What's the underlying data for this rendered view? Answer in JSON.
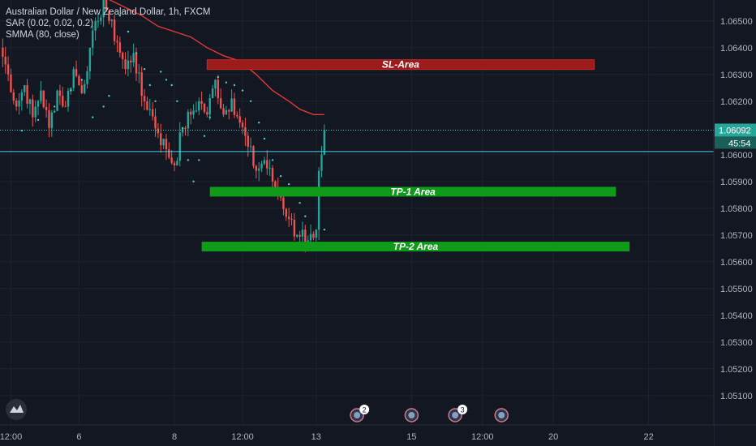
{
  "header": {
    "symbol_title": "Australian Dollar / New Zealand Dollar, 1h, FXCM",
    "indicator_sar": "SAR (0.02, 0.02, 0.2)",
    "indicator_smma": "SMMA (80, close)"
  },
  "colors": {
    "background": "#131722",
    "bull": "#26a69a",
    "bear": "#ef5350",
    "sar": "#4dd0c8",
    "smma": "#e53935",
    "price_line": "#4dd0e1",
    "sl_zone": "#9c1b1b",
    "tp_zone": "#0f9a1a",
    "axis_text": "#b2b5be",
    "grid": "#1e222d"
  },
  "zones": [
    {
      "name": "sl-zone",
      "label": "SL-Area",
      "top": 1.06355,
      "bottom": 1.0633,
      "start_index": 76,
      "end_index": 218,
      "color": "#9c1b1b"
    },
    {
      "name": "tp1-zone",
      "label": "TP-1 Area",
      "top": 1.0588,
      "bottom": 1.05855,
      "start_index": 77,
      "end_index": 226,
      "color": "#0f9a1a"
    },
    {
      "name": "tp2-zone",
      "label": "TP-2 Area",
      "top": 1.05675,
      "bottom": 1.0565,
      "start_index": 74,
      "end_index": 231,
      "color": "#0f9a1a"
    }
  ],
  "price_labels": {
    "current_price": "1.06092",
    "countdown": "45:54",
    "current_value": 1.06092,
    "horizontal_line": 1.06012
  },
  "events": [
    {
      "name": "event-1",
      "index": 131,
      "count": "2"
    },
    {
      "name": "event-2",
      "index": 151,
      "count": ""
    },
    {
      "name": "event-3",
      "index": 167,
      "count": "3"
    },
    {
      "name": "event-4",
      "index": 184,
      "count": ""
    }
  ],
  "logo": "tradingview-logo",
  "chart_data": {
    "type": "candlestick",
    "title": "Australian Dollar / New Zealand Dollar, 1h, FXCM",
    "ylim": [
      1.0505,
      1.0656
    ],
    "y_ticks": [
      "1.06500",
      "1.06400",
      "1.06300",
      "1.06200",
      "1.06000",
      "1.05900",
      "1.05800",
      "1.05700",
      "1.05600",
      "1.05500",
      "1.05400",
      "1.05300",
      "1.05200",
      "1.05100"
    ],
    "x_ticks": [
      {
        "label": "12:00",
        "index": 4
      },
      {
        "label": "6",
        "index": 29
      },
      {
        "label": "8",
        "index": 64
      },
      {
        "label": "12:00",
        "index": 89
      },
      {
        "label": "13",
        "index": 116
      },
      {
        "label": "15",
        "index": 151
      },
      {
        "label": "12:00",
        "index": 177
      },
      {
        "label": "20",
        "index": 203
      },
      {
        "label": "22",
        "index": 238
      }
    ],
    "last_x_label": "",
    "ohlc_anchors": [
      [
        0,
        1.064
      ],
      [
        3,
        1.063
      ],
      [
        6,
        1.0618
      ],
      [
        9,
        1.0626
      ],
      [
        12,
        1.0614
      ],
      [
        15,
        1.0624
      ],
      [
        18,
        1.061
      ],
      [
        21,
        1.0624
      ],
      [
        24,
        1.0618
      ],
      [
        27,
        1.0632
      ],
      [
        30,
        1.0623
      ],
      [
        33,
        1.064
      ],
      [
        36,
        1.065
      ],
      [
        38,
        1.0658
      ],
      [
        40,
        1.065
      ],
      [
        43,
        1.0642
      ],
      [
        46,
        1.0632
      ],
      [
        49,
        1.0638
      ],
      [
        52,
        1.0622
      ],
      [
        55,
        1.0617
      ],
      [
        58,
        1.0608
      ],
      [
        61,
        1.0602
      ],
      [
        64,
        1.0596
      ],
      [
        67,
        1.061
      ],
      [
        70,
        1.0615
      ],
      [
        73,
        1.062
      ],
      [
        76,
        1.0615
      ],
      [
        79,
        1.0628
      ],
      [
        82,
        1.0615
      ],
      [
        85,
        1.0621
      ],
      [
        88,
        1.0612
      ],
      [
        91,
        1.0603
      ],
      [
        94,
        1.0594
      ],
      [
        97,
        1.0598
      ],
      [
        100,
        1.059
      ],
      [
        103,
        1.0584
      ],
      [
        106,
        1.0576
      ],
      [
        109,
        1.057
      ],
      [
        111,
        1.0572
      ],
      [
        112,
        1.0567
      ],
      [
        113,
        1.0568
      ],
      [
        115,
        1.0569
      ],
      [
        116,
        1.0572
      ],
      [
        117,
        1.0594
      ],
      [
        118,
        1.06
      ],
      [
        119,
        1.06092
      ]
    ],
    "smma": [
      [
        40,
        1.0658
      ],
      [
        46,
        1.0655
      ],
      [
        52,
        1.0652
      ],
      [
        58,
        1.0648
      ],
      [
        64,
        1.0646
      ],
      [
        70,
        1.0644
      ],
      [
        76,
        1.064
      ],
      [
        82,
        1.0637
      ],
      [
        88,
        1.0635
      ],
      [
        94,
        1.063
      ],
      [
        100,
        1.0624
      ],
      [
        106,
        1.062
      ],
      [
        110,
        1.0617
      ],
      [
        115,
        1.0615
      ],
      [
        119,
        1.0615
      ]
    ],
    "sar": [
      [
        8,
        1.0609
      ],
      [
        14,
        1.0613
      ],
      [
        20,
        1.0618
      ],
      [
        26,
        1.0624
      ],
      [
        30,
        1.0628
      ],
      [
        34,
        1.0614
      ],
      [
        38,
        1.0618
      ],
      [
        40,
        1.0622
      ],
      [
        44,
        1.0652
      ],
      [
        47,
        1.0646
      ],
      [
        50,
        1.0638
      ],
      [
        53,
        1.0632
      ],
      [
        55,
        1.0626
      ],
      [
        57,
        1.062
      ],
      [
        59,
        1.0631
      ],
      [
        61,
        1.0628
      ],
      [
        63,
        1.0626
      ],
      [
        65,
        1.062
      ],
      [
        67,
        1.061
      ],
      [
        69,
        1.0598
      ],
      [
        71,
        1.059
      ],
      [
        73,
        1.0598
      ],
      [
        75,
        1.0607
      ],
      [
        77,
        1.0614
      ],
      [
        80,
        1.0629
      ],
      [
        83,
        1.0627
      ],
      [
        86,
        1.0626
      ],
      [
        89,
        1.0624
      ],
      [
        92,
        1.062
      ],
      [
        95,
        1.0612
      ],
      [
        97,
        1.0606
      ],
      [
        100,
        1.0598
      ],
      [
        103,
        1.0592
      ],
      [
        106,
        1.0589
      ],
      [
        108,
        1.0586
      ],
      [
        110,
        1.0582
      ],
      [
        112,
        1.0577
      ],
      [
        114,
        1.0567
      ],
      [
        116,
        1.0565
      ],
      [
        118,
        1.0566
      ],
      [
        119,
        1.0572
      ]
    ]
  }
}
